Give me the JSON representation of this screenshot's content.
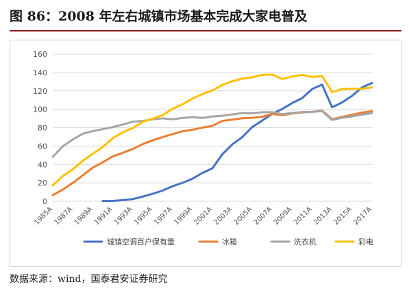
{
  "header": {
    "title": "图 86：2008 年左右城镇市场基本完成大家电普及"
  },
  "footer": {
    "source": "数据来源：wind，国泰君安证券研究"
  },
  "chart_data": {
    "type": "line",
    "title": "",
    "xlabel": "",
    "ylabel": "",
    "ylim": [
      0,
      160
    ],
    "yticks": [
      0,
      20,
      40,
      60,
      80,
      100,
      120,
      140,
      160
    ],
    "grid": true,
    "legend_position": "bottom",
    "x": [
      "1985A",
      "1986A",
      "1987A",
      "1988A",
      "1989A",
      "1990A",
      "1991A",
      "1992A",
      "1993A",
      "1994A",
      "1995A",
      "1996A",
      "1997A",
      "1998A",
      "1999A",
      "2000A",
      "2001A",
      "2002A",
      "2003A",
      "2004A",
      "2005A",
      "2006A",
      "2007A",
      "2008A",
      "2009A",
      "2010A",
      "2011A",
      "2012A",
      "2013A",
      "2014A",
      "2015A",
      "2016A",
      "2017A"
    ],
    "x_tick_labels": [
      "1985A",
      "1987A",
      "1989A",
      "1991A",
      "1993A",
      "1995A",
      "1997A",
      "1999A",
      "2001A",
      "2003A",
      "2005A",
      "2007A",
      "2009A",
      "2011A",
      "2013A",
      "2015A",
      "2017A"
    ],
    "series": [
      {
        "name": "城镇空调百户保有量",
        "color": "#4472c4",
        "values": [
          null,
          null,
          null,
          null,
          null,
          0.3,
          0.4,
          1.2,
          2.3,
          5.0,
          8.1,
          11.6,
          16.3,
          20.0,
          24.5,
          30.8,
          35.8,
          51.1,
          61.8,
          69.8,
          80.7,
          87.8,
          95.1,
          100.3,
          106.8,
          112.1,
          122.0,
          126.8,
          102.2,
          107.4,
          114.6,
          123.7,
          128.6
        ]
      },
      {
        "name": "冰箱",
        "color": "#ed7d31",
        "values": [
          6.6,
          12.7,
          19.9,
          28.1,
          36.5,
          42.3,
          48.7,
          52.6,
          56.7,
          62.1,
          66.2,
          69.7,
          73.0,
          76.1,
          77.7,
          80.1,
          81.9,
          87.4,
          88.7,
          90.2,
          90.7,
          91.8,
          95.0,
          93.6,
          95.4,
          96.6,
          97.2,
          98.5,
          89.2,
          91.7,
          94.0,
          96.4,
          98.0
        ]
      },
      {
        "name": "洗衣机",
        "color": "#a5a5a5",
        "values": [
          48.3,
          59.7,
          67.1,
          73.4,
          76.2,
          78.4,
          80.6,
          83.4,
          86.4,
          87.3,
          89.0,
          90.1,
          89.1,
          90.6,
          91.4,
          90.5,
          92.2,
          92.9,
          94.4,
          95.9,
          95.5,
          96.8,
          96.8,
          94.7,
          96.0,
          97.0,
          97.1,
          98.0,
          88.4,
          90.7,
          92.3,
          94.2,
          95.7
        ]
      },
      {
        "name": "彩电",
        "color": "#ffc000",
        "values": [
          17.2,
          27.4,
          34.6,
          43.9,
          51.5,
          59.0,
          68.4,
          74.9,
          79.5,
          86.2,
          89.8,
          93.5,
          100.5,
          105.4,
          111.6,
          116.6,
          120.5,
          126.4,
          130.5,
          133.4,
          134.8,
          137.4,
          137.8,
          132.9,
          135.7,
          137.4,
          135.2,
          136.1,
          118.6,
          122.0,
          122.3,
          122.3,
          123.8
        ]
      }
    ]
  }
}
